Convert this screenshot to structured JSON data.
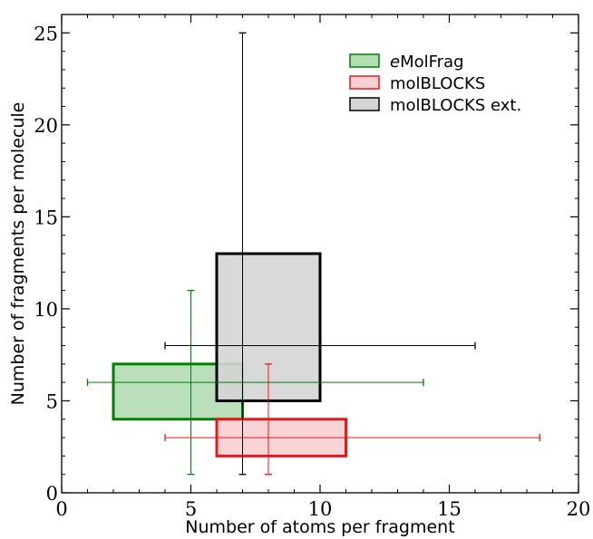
{
  "chart_data": {
    "type": "box-range",
    "title": "",
    "xlabel": "Number of atoms per fragment",
    "ylabel": "Number of fragments per molecule",
    "xlim": [
      0,
      20
    ],
    "ylim": [
      0,
      26
    ],
    "xticks": [
      0,
      5,
      10,
      15,
      20
    ],
    "yticks": [
      0,
      5,
      10,
      15,
      20,
      25
    ],
    "grid": false,
    "legend_position": "top-right",
    "series": [
      {
        "name": "eMolFrag",
        "legend_italic_prefix": "e",
        "legend_rest": "MolFrag",
        "edge_color": "#008000",
        "fill_color": "#b3dcb3",
        "box": {
          "x": [
            2,
            7
          ],
          "y": [
            4,
            7
          ]
        },
        "xerr": {
          "y": 6,
          "range": [
            1,
            14
          ]
        },
        "yerr": {
          "x": 5,
          "range": [
            1,
            11
          ]
        }
      },
      {
        "name": "molBLOCKS",
        "legend_italic_prefix": "",
        "legend_rest": "molBLOCKS",
        "edge_color": "#e81818",
        "fill_color": "#f8cfd2",
        "box": {
          "x": [
            6,
            11
          ],
          "y": [
            2,
            4
          ]
        },
        "xerr": {
          "y": 3,
          "range": [
            4,
            18.5
          ]
        },
        "yerr": {
          "x": 8,
          "range": [
            1,
            7
          ]
        }
      },
      {
        "name": "molBLOCKS ext.",
        "legend_italic_prefix": "",
        "legend_rest": "molBLOCKS ext.",
        "edge_color": "#000000",
        "fill_color": "#d5d5d5",
        "box": {
          "x": [
            6,
            10
          ],
          "y": [
            5,
            13
          ]
        },
        "xerr": {
          "y": 8,
          "range": [
            4,
            16
          ]
        },
        "yerr": {
          "x": 7,
          "range": [
            1,
            25
          ]
        }
      }
    ]
  }
}
